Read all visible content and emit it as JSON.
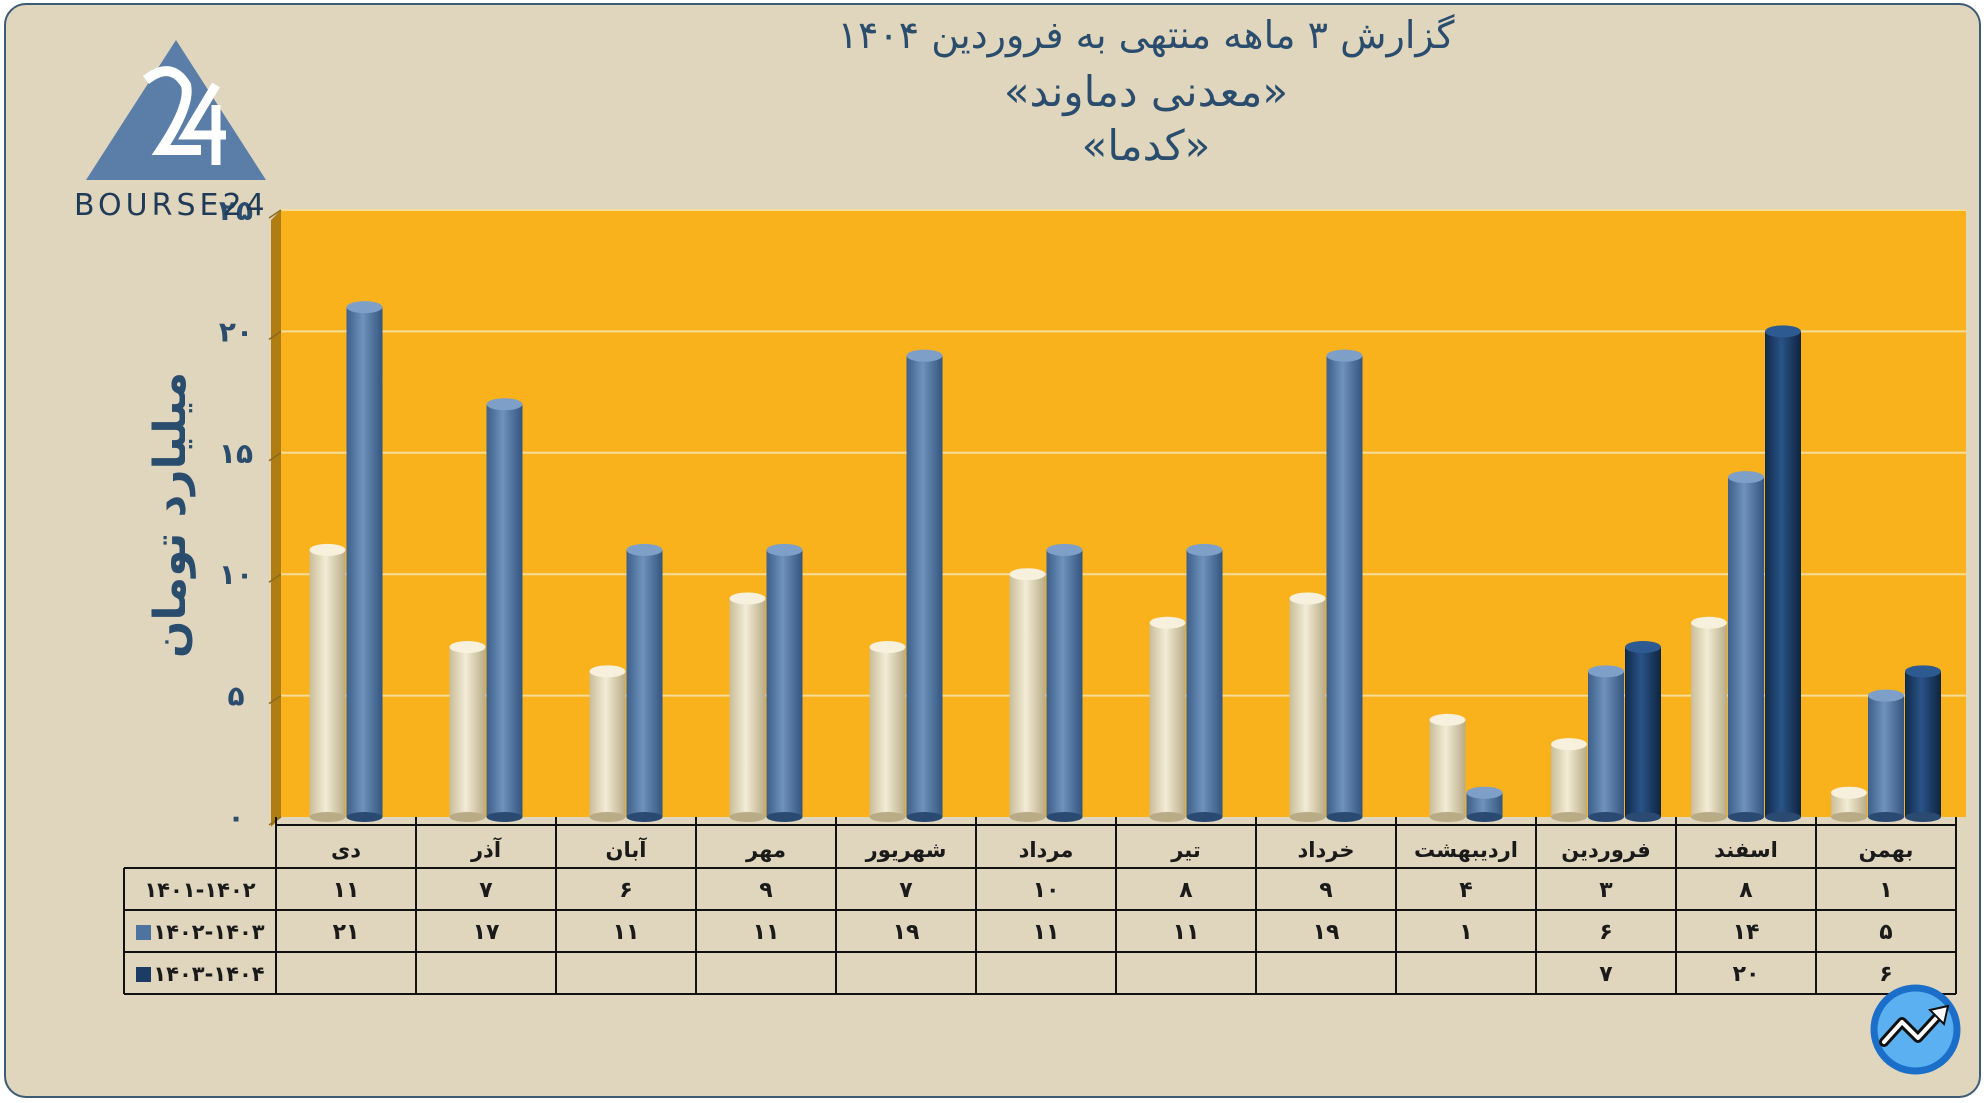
{
  "title": {
    "line1": "گزارش ۳ ماهه منتهی به فروردین ۱۴۰۴",
    "line2": "«معدنی دماوند»",
    "line3": "«کدما»"
  },
  "logo": {
    "text": "BOURSE24",
    "icon": "bourse24-logo"
  },
  "corner_badge": {
    "icon": "trend-arrow-icon"
  },
  "colors": {
    "plot_bg": "#f9b21b",
    "series_1": "#e6dcbd",
    "series_2": "#4f73a0",
    "series_3": "#1b3c64",
    "text": "#2a4d6e"
  },
  "chart_data": {
    "type": "bar",
    "ylabel": "میلیارد تومان",
    "ylim": [
      0,
      25
    ],
    "yticks": [
      "۰",
      "۵",
      "۱۰",
      "۱۵",
      "۲۰",
      "۲۵"
    ],
    "grid": true,
    "categories": [
      "بهمن",
      "اسفند",
      "فروردین",
      "اردیبهشت",
      "خرداد",
      "تیر",
      "مرداد",
      "شهریور",
      "مهر",
      "آبان",
      "آذر",
      "دی"
    ],
    "series": [
      {
        "name": "۱۴۰۱-۱۴۰۲",
        "values": [
          1,
          8,
          3,
          4,
          9,
          8,
          10,
          7,
          9,
          6,
          7,
          11
        ],
        "labels": [
          "۱",
          "۸",
          "۳",
          "۴",
          "۹",
          "۸",
          "۱۰",
          "۷",
          "۹",
          "۶",
          "۷",
          "۱۱"
        ]
      },
      {
        "name": "۱۴۰۲-۱۴۰۳",
        "values": [
          5,
          14,
          6,
          1,
          19,
          11,
          11,
          19,
          11,
          11,
          17,
          21
        ],
        "labels": [
          "۵",
          "۱۴",
          "۶",
          "۱",
          "۱۹",
          "۱۱",
          "۱۱",
          "۱۹",
          "۱۱",
          "۱۱",
          "۱۷",
          "۲۱"
        ]
      },
      {
        "name": "۱۴۰۳-۱۴۰۴",
        "values": [
          6,
          20,
          7,
          null,
          null,
          null,
          null,
          null,
          null,
          null,
          null,
          null
        ],
        "labels": [
          "۶",
          "۲۰",
          "۷",
          "",
          "",
          "",
          "",
          "",
          "",
          "",
          "",
          ""
        ]
      }
    ]
  }
}
